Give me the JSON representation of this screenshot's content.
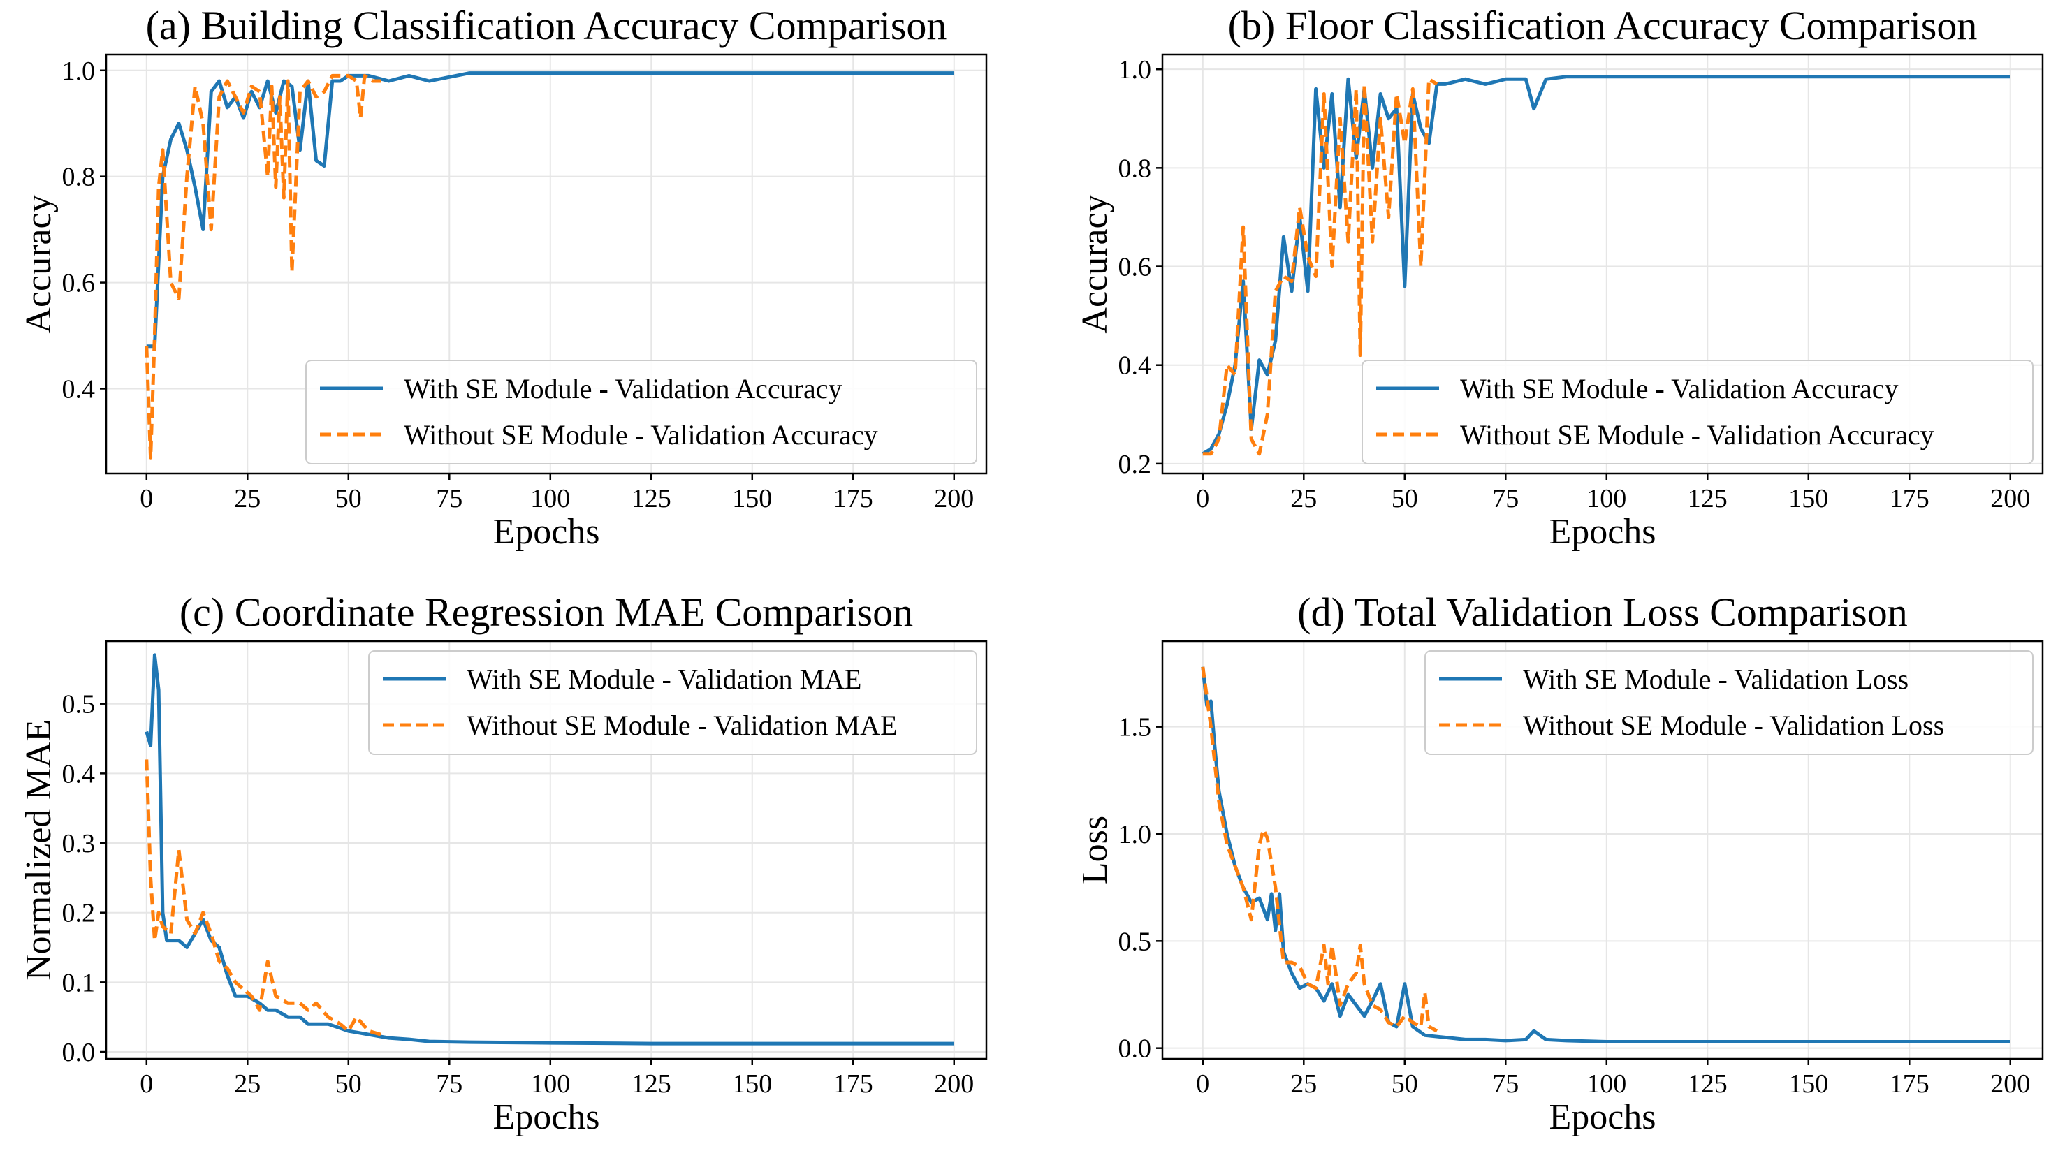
{
  "colors": {
    "with_se": "#1f77b4",
    "without_se": "#ff7f0e",
    "grid": "#e6e6e6",
    "frame": "#000000"
  },
  "chart_data": [
    {
      "type": "line",
      "title": "(a) Building Classification Accuracy Comparison",
      "xlabel": "Epochs",
      "ylabel": "Accuracy",
      "xlim": [
        -10,
        208
      ],
      "ylim": [
        0.24,
        1.03
      ],
      "xticks": [
        0,
        25,
        50,
        75,
        100,
        125,
        150,
        175,
        200
      ],
      "yticks": [
        0.4,
        0.6,
        0.8,
        1.0
      ],
      "ytick_labels": [
        "0.4",
        "0.6",
        "0.8",
        "1.0"
      ],
      "grid": true,
      "legend": "lower-right",
      "series": [
        {
          "name": "With SE Module - Validation Accuracy",
          "style": "solid",
          "x": [
            0,
            2,
            4,
            6,
            8,
            10,
            12,
            14,
            16,
            18,
            20,
            22,
            24,
            26,
            28,
            30,
            32,
            34,
            36,
            38,
            40,
            42,
            44,
            46,
            48,
            50,
            55,
            60,
            65,
            70,
            80,
            90,
            100,
            125,
            150,
            175,
            200
          ],
          "y": [
            0.48,
            0.48,
            0.8,
            0.87,
            0.9,
            0.85,
            0.78,
            0.7,
            0.96,
            0.98,
            0.93,
            0.95,
            0.91,
            0.96,
            0.93,
            0.98,
            0.92,
            0.98,
            0.97,
            0.85,
            0.98,
            0.83,
            0.82,
            0.98,
            0.98,
            0.99,
            0.99,
            0.98,
            0.99,
            0.98,
            0.995,
            0.995,
            0.995,
            0.995,
            0.995,
            0.995,
            0.995
          ]
        },
        {
          "name": "Without SE Module - Validation Accuracy",
          "style": "dashed",
          "x": [
            0,
            1,
            2,
            3,
            4,
            6,
            8,
            10,
            12,
            14,
            16,
            18,
            20,
            22,
            24,
            26,
            28,
            30,
            31,
            32,
            33,
            34,
            35,
            36,
            38,
            40,
            42,
            44,
            46,
            48,
            50,
            52,
            53,
            54,
            56,
            58
          ],
          "y": [
            0.48,
            0.27,
            0.5,
            0.78,
            0.85,
            0.6,
            0.57,
            0.8,
            0.97,
            0.9,
            0.7,
            0.95,
            0.98,
            0.95,
            0.92,
            0.97,
            0.96,
            0.8,
            0.97,
            0.78,
            0.95,
            0.76,
            0.98,
            0.62,
            0.96,
            0.98,
            0.95,
            0.96,
            0.99,
            0.99,
            0.99,
            0.98,
            0.91,
            0.99,
            0.98,
            0.98
          ]
        }
      ]
    },
    {
      "type": "line",
      "title": "(b) Floor Classification Accuracy Comparison",
      "xlabel": "Epochs",
      "ylabel": "Accuracy",
      "xlim": [
        -10,
        208
      ],
      "ylim": [
        0.18,
        1.03
      ],
      "xticks": [
        0,
        25,
        50,
        75,
        100,
        125,
        150,
        175,
        200
      ],
      "yticks": [
        0.2,
        0.4,
        0.6,
        0.8,
        1.0
      ],
      "ytick_labels": [
        "0.2",
        "0.4",
        "0.6",
        "0.8",
        "1.0"
      ],
      "grid": true,
      "legend": "lower-right",
      "series": [
        {
          "name": "With SE Module - Validation Accuracy",
          "style": "solid",
          "x": [
            0,
            2,
            4,
            6,
            8,
            10,
            12,
            14,
            16,
            18,
            20,
            22,
            24,
            26,
            28,
            30,
            32,
            34,
            36,
            38,
            40,
            42,
            44,
            46,
            48,
            50,
            52,
            54,
            56,
            58,
            60,
            65,
            70,
            75,
            80,
            82,
            85,
            90,
            100,
            125,
            150,
            175,
            200
          ],
          "y": [
            0.22,
            0.23,
            0.26,
            0.32,
            0.4,
            0.57,
            0.27,
            0.41,
            0.38,
            0.45,
            0.66,
            0.55,
            0.7,
            0.55,
            0.96,
            0.8,
            0.95,
            0.72,
            0.98,
            0.82,
            0.96,
            0.8,
            0.95,
            0.9,
            0.92,
            0.56,
            0.95,
            0.88,
            0.85,
            0.97,
            0.97,
            0.98,
            0.97,
            0.98,
            0.98,
            0.92,
            0.98,
            0.985,
            0.985,
            0.985,
            0.985,
            0.985,
            0.985
          ]
        },
        {
          "name": "Without SE Module - Validation Accuracy",
          "style": "dashed",
          "x": [
            0,
            2,
            4,
            6,
            8,
            10,
            12,
            14,
            16,
            18,
            20,
            22,
            24,
            26,
            28,
            30,
            32,
            34,
            36,
            38,
            39,
            40,
            42,
            44,
            46,
            48,
            50,
            52,
            54,
            56,
            58
          ],
          "y": [
            0.22,
            0.22,
            0.25,
            0.4,
            0.38,
            0.68,
            0.25,
            0.22,
            0.3,
            0.55,
            0.58,
            0.57,
            0.72,
            0.62,
            0.58,
            0.95,
            0.6,
            0.9,
            0.65,
            0.96,
            0.42,
            0.97,
            0.65,
            0.9,
            0.7,
            0.95,
            0.85,
            0.96,
            0.6,
            0.98,
            0.97
          ]
        }
      ]
    },
    {
      "type": "line",
      "title": "(c) Coordinate Regression MAE Comparison",
      "xlabel": "Epochs",
      "ylabel": "Normalized MAE",
      "xlim": [
        -10,
        208
      ],
      "ylim": [
        -0.01,
        0.59
      ],
      "xticks": [
        0,
        25,
        50,
        75,
        100,
        125,
        150,
        175,
        200
      ],
      "yticks": [
        0.0,
        0.1,
        0.2,
        0.3,
        0.4,
        0.5
      ],
      "ytick_labels": [
        "0.0",
        "0.1",
        "0.2",
        "0.3",
        "0.4",
        "0.5"
      ],
      "grid": true,
      "legend": "upper-right",
      "series": [
        {
          "name": "With SE Module - Validation MAE",
          "style": "solid",
          "x": [
            0,
            1,
            2,
            3,
            4,
            5,
            6,
            8,
            10,
            12,
            14,
            16,
            18,
            20,
            22,
            25,
            28,
            30,
            32,
            35,
            38,
            40,
            45,
            50,
            55,
            60,
            65,
            70,
            80,
            100,
            125,
            150,
            175,
            200
          ],
          "y": [
            0.46,
            0.44,
            0.57,
            0.52,
            0.2,
            0.16,
            0.16,
            0.16,
            0.15,
            0.17,
            0.19,
            0.16,
            0.15,
            0.11,
            0.08,
            0.08,
            0.07,
            0.06,
            0.06,
            0.05,
            0.05,
            0.04,
            0.04,
            0.03,
            0.025,
            0.02,
            0.018,
            0.015,
            0.014,
            0.013,
            0.012,
            0.012,
            0.012,
            0.012
          ]
        },
        {
          "name": "Without SE Module - Validation MAE",
          "style": "dashed",
          "x": [
            0,
            1,
            2,
            3,
            4,
            6,
            8,
            10,
            12,
            14,
            16,
            18,
            20,
            22,
            24,
            26,
            28,
            30,
            32,
            35,
            38,
            40,
            42,
            45,
            48,
            50,
            52,
            55,
            58
          ],
          "y": [
            0.42,
            0.25,
            0.16,
            0.2,
            0.18,
            0.17,
            0.29,
            0.19,
            0.17,
            0.2,
            0.17,
            0.13,
            0.12,
            0.1,
            0.09,
            0.08,
            0.06,
            0.13,
            0.08,
            0.07,
            0.07,
            0.06,
            0.07,
            0.05,
            0.04,
            0.03,
            0.05,
            0.03,
            0.025
          ]
        }
      ]
    },
    {
      "type": "line",
      "title": "(d) Total Validation Loss Comparison",
      "xlabel": "Epochs",
      "ylabel": "Loss",
      "xlim": [
        -10,
        208
      ],
      "ylim": [
        -0.05,
        1.9
      ],
      "xticks": [
        0,
        25,
        50,
        75,
        100,
        125,
        150,
        175,
        200
      ],
      "yticks": [
        0.0,
        0.5,
        1.0,
        1.5
      ],
      "ytick_labels": [
        "0.0",
        "0.5",
        "1.0",
        "1.5"
      ],
      "grid": true,
      "legend": "upper-right",
      "series": [
        {
          "name": "With SE Module - Validation Loss",
          "style": "solid",
          "x": [
            0,
            1,
            2,
            3,
            4,
            6,
            8,
            10,
            12,
            14,
            16,
            17,
            18,
            19,
            20,
            22,
            24,
            26,
            28,
            30,
            32,
            34,
            36,
            38,
            40,
            42,
            44,
            46,
            48,
            50,
            52,
            55,
            60,
            65,
            70,
            75,
            80,
            82,
            85,
            90,
            100,
            125,
            150,
            175,
            200
          ],
          "y": [
            1.78,
            1.6,
            1.62,
            1.4,
            1.2,
            1.0,
            0.85,
            0.75,
            0.68,
            0.7,
            0.6,
            0.72,
            0.55,
            0.72,
            0.45,
            0.35,
            0.28,
            0.3,
            0.28,
            0.22,
            0.3,
            0.15,
            0.25,
            0.2,
            0.15,
            0.22,
            0.3,
            0.12,
            0.1,
            0.3,
            0.1,
            0.06,
            0.05,
            0.04,
            0.04,
            0.035,
            0.04,
            0.08,
            0.04,
            0.035,
            0.03,
            0.03,
            0.03,
            0.03,
            0.03
          ]
        },
        {
          "name": "Without SE Module - Validation Loss",
          "style": "dashed",
          "x": [
            0,
            2,
            4,
            6,
            8,
            10,
            12,
            14,
            15,
            16,
            18,
            20,
            22,
            24,
            26,
            28,
            30,
            31,
            32,
            34,
            36,
            38,
            39,
            40,
            42,
            44,
            46,
            48,
            50,
            52,
            54,
            55,
            56,
            58
          ],
          "y": [
            1.78,
            1.5,
            1.15,
            0.95,
            0.85,
            0.75,
            0.6,
            0.95,
            1.02,
            0.98,
            0.75,
            0.4,
            0.4,
            0.38,
            0.3,
            0.28,
            0.48,
            0.3,
            0.48,
            0.2,
            0.3,
            0.35,
            0.48,
            0.3,
            0.2,
            0.18,
            0.12,
            0.1,
            0.15,
            0.12,
            0.1,
            0.26,
            0.1,
            0.08
          ]
        }
      ]
    }
  ]
}
